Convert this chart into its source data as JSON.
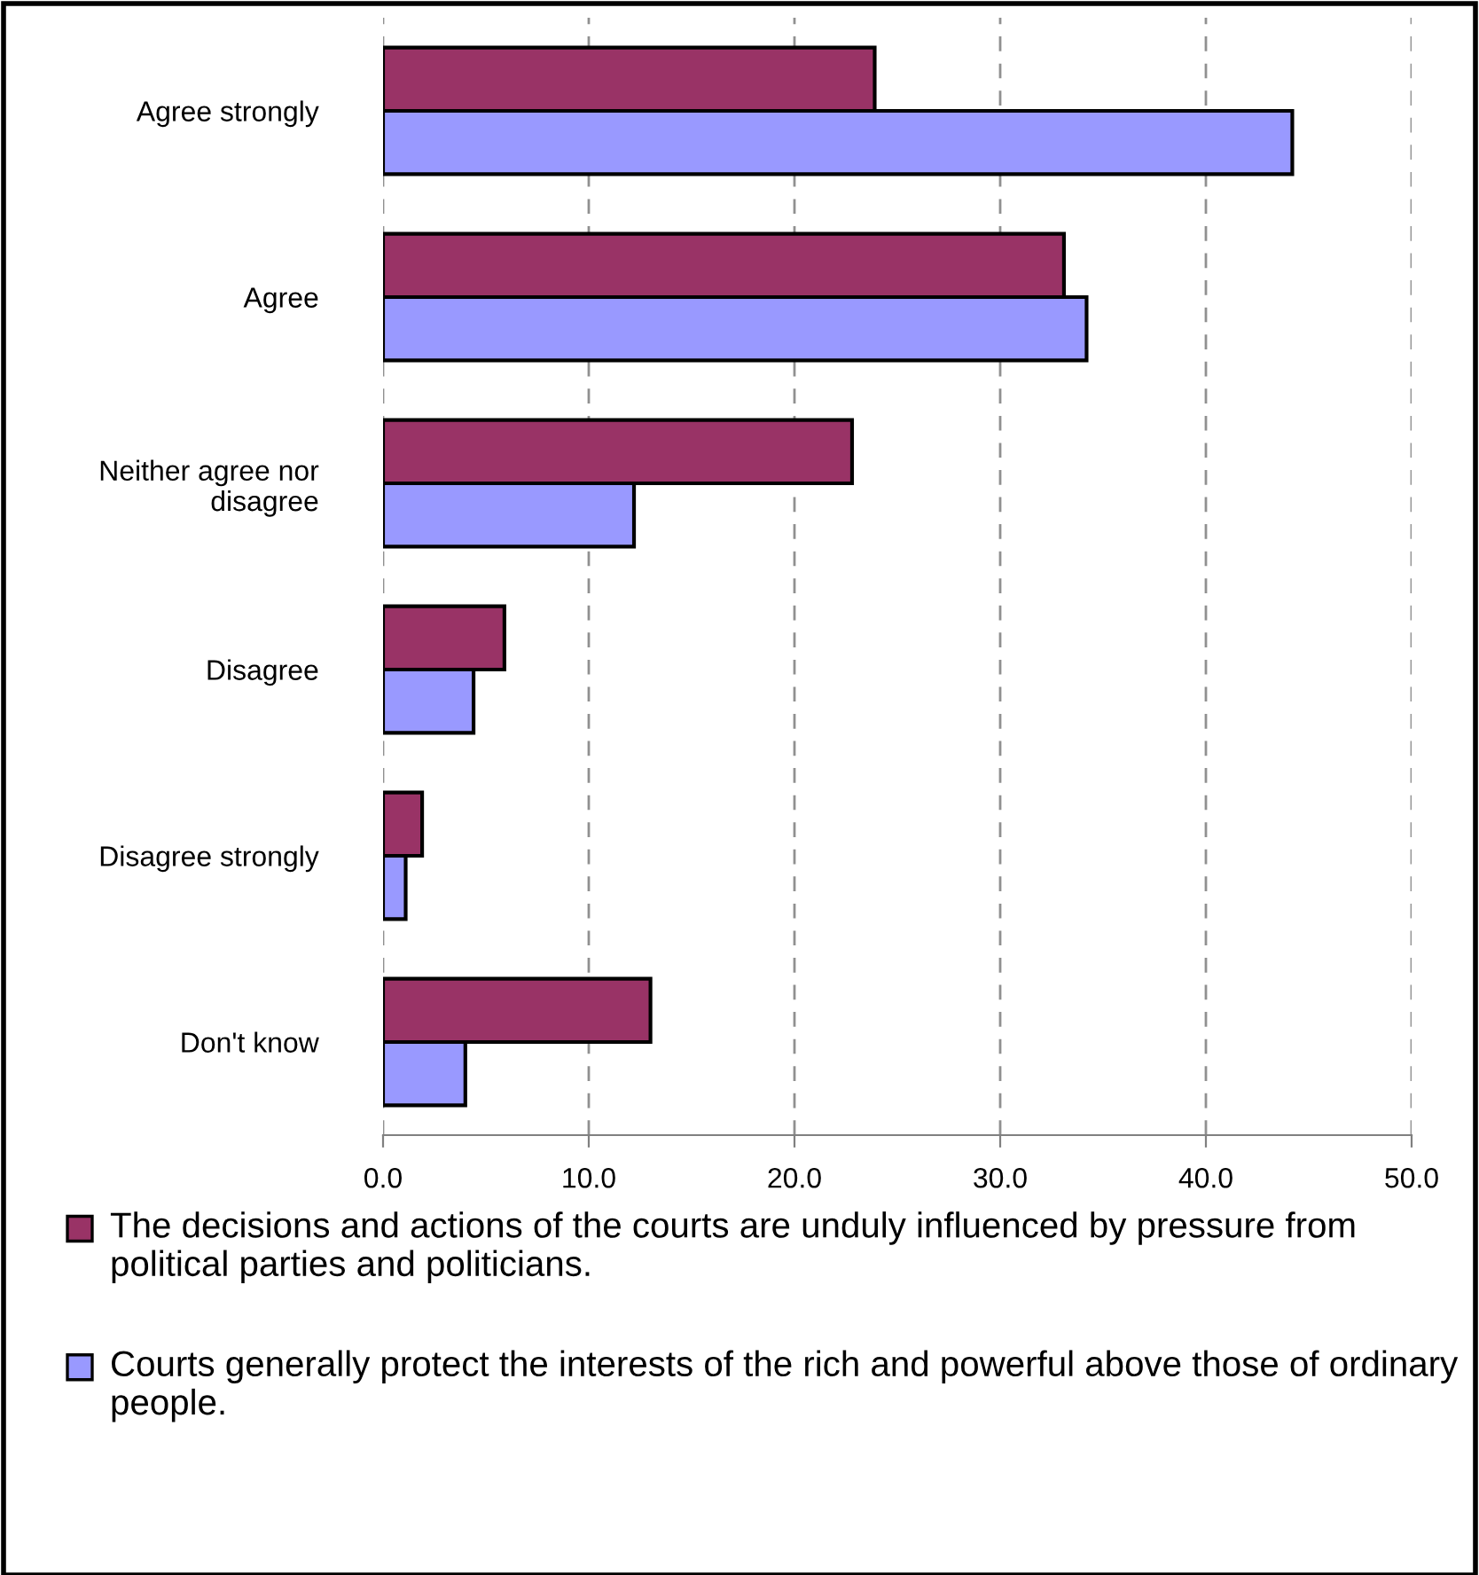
{
  "chart_data": {
    "type": "bar",
    "orientation": "horizontal",
    "categories": [
      "Agree strongly",
      "Agree",
      "Neither agree nor disagree",
      "Disagree",
      "Disagree strongly",
      "Don't know"
    ],
    "series": [
      {
        "name": "The decisions and actions of the courts are unduly influenced by pressure from political parties and politicians.",
        "color": "#993366",
        "values": [
          23.9,
          33.1,
          22.8,
          5.9,
          1.9,
          13.0
        ]
      },
      {
        "name": "Courts generally protect the interests of the rich and powerful above those of ordinary people.",
        "color": "#9999ff",
        "values": [
          44.2,
          34.2,
          12.2,
          4.4,
          1.1,
          4.0
        ]
      }
    ],
    "xlim": [
      0,
      50
    ],
    "xticks": [
      {
        "value": 0,
        "label": "0.0"
      },
      {
        "value": 10,
        "label": "10.0"
      },
      {
        "value": 20,
        "label": "20.0"
      },
      {
        "value": 30,
        "label": "30.0"
      },
      {
        "value": 40,
        "label": "40.0"
      },
      {
        "value": 50,
        "label": "50.0"
      }
    ],
    "grid": "x",
    "legend": "bottom"
  }
}
